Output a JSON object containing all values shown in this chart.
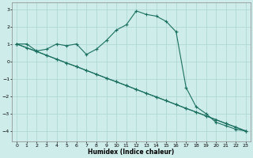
{
  "xlabel": "Humidex (Indice chaleur)",
  "xlim": [
    -0.5,
    23.5
  ],
  "ylim": [
    -4.6,
    3.4
  ],
  "yticks": [
    -4,
    -3,
    -2,
    -1,
    0,
    1,
    2,
    3
  ],
  "xticks": [
    0,
    1,
    2,
    3,
    4,
    5,
    6,
    7,
    8,
    9,
    10,
    11,
    12,
    13,
    14,
    15,
    16,
    17,
    18,
    19,
    20,
    21,
    22,
    23
  ],
  "bg_color": "#ceecea",
  "grid_color": "#aed8d4",
  "line_color": "#1a7060",
  "line1_x": [
    0,
    1,
    2,
    3,
    4,
    5,
    6,
    7,
    8,
    9,
    10,
    11,
    12,
    13,
    14,
    15,
    16,
    17,
    18,
    19,
    20,
    21,
    22,
    23
  ],
  "line1_y": [
    1.0,
    1.0,
    0.6,
    0.7,
    1.0,
    0.9,
    1.0,
    0.4,
    0.7,
    1.2,
    1.8,
    2.1,
    2.9,
    2.7,
    2.6,
    2.3,
    1.7,
    -1.5,
    -2.6,
    -3.0,
    -3.5,
    -3.7,
    -3.9,
    -4.0
  ],
  "line2_x": [
    0,
    1,
    2,
    3,
    4,
    5,
    6,
    7,
    8,
    9,
    10,
    11,
    12,
    13,
    14,
    15,
    16,
    17,
    18,
    19,
    20,
    21,
    22,
    23
  ],
  "line2_y": [
    1.0,
    0.78,
    0.57,
    0.35,
    0.13,
    -0.09,
    -0.3,
    -0.52,
    -0.74,
    -0.96,
    -1.17,
    -1.39,
    -1.61,
    -1.83,
    -2.04,
    -2.26,
    -2.48,
    -2.7,
    -2.91,
    -3.13,
    -3.35,
    -3.57,
    -3.78,
    -4.0
  ],
  "line3_x": [
    0,
    2,
    3,
    4,
    5,
    6,
    7,
    8,
    9,
    10,
    11,
    12,
    13,
    14,
    15,
    16,
    17,
    18,
    19,
    20,
    21,
    22,
    23
  ],
  "line3_y": [
    1.0,
    0.57,
    0.35,
    0.13,
    -0.09,
    -0.3,
    -0.52,
    -0.74,
    -0.96,
    -1.17,
    -1.39,
    -1.61,
    -1.83,
    -2.04,
    -2.26,
    -2.48,
    -2.7,
    -2.91,
    -3.13,
    -3.35,
    -3.57,
    -3.78,
    -4.0
  ]
}
